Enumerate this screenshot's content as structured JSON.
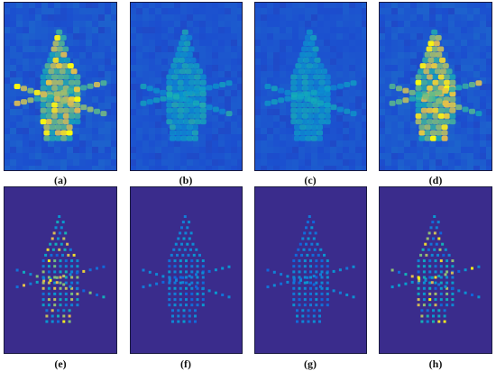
{
  "figure": {
    "panels": [
      {
        "id": "a",
        "label": "(a)",
        "style": "blur",
        "intensity": 1.0,
        "colormap": "parula"
      },
      {
        "id": "b",
        "label": "(b)",
        "style": "blur",
        "intensity": 0.55,
        "colormap": "parula"
      },
      {
        "id": "c",
        "label": "(c)",
        "style": "blur",
        "intensity": 0.5,
        "colormap": "parula"
      },
      {
        "id": "d",
        "label": "(d)",
        "style": "blur",
        "intensity": 1.0,
        "colormap": "parula"
      },
      {
        "id": "e",
        "label": "(e)",
        "style": "sparse",
        "intensity": 1.0,
        "colormap": "parula"
      },
      {
        "id": "f",
        "label": "(f)",
        "style": "sparse",
        "intensity": 0.45,
        "colormap": "parula"
      },
      {
        "id": "g",
        "label": "(g)",
        "style": "sparse",
        "intensity": 0.4,
        "colormap": "parula"
      },
      {
        "id": "h",
        "label": "(h)",
        "style": "sparse",
        "intensity": 0.9,
        "colormap": "parula"
      }
    ]
  }
}
